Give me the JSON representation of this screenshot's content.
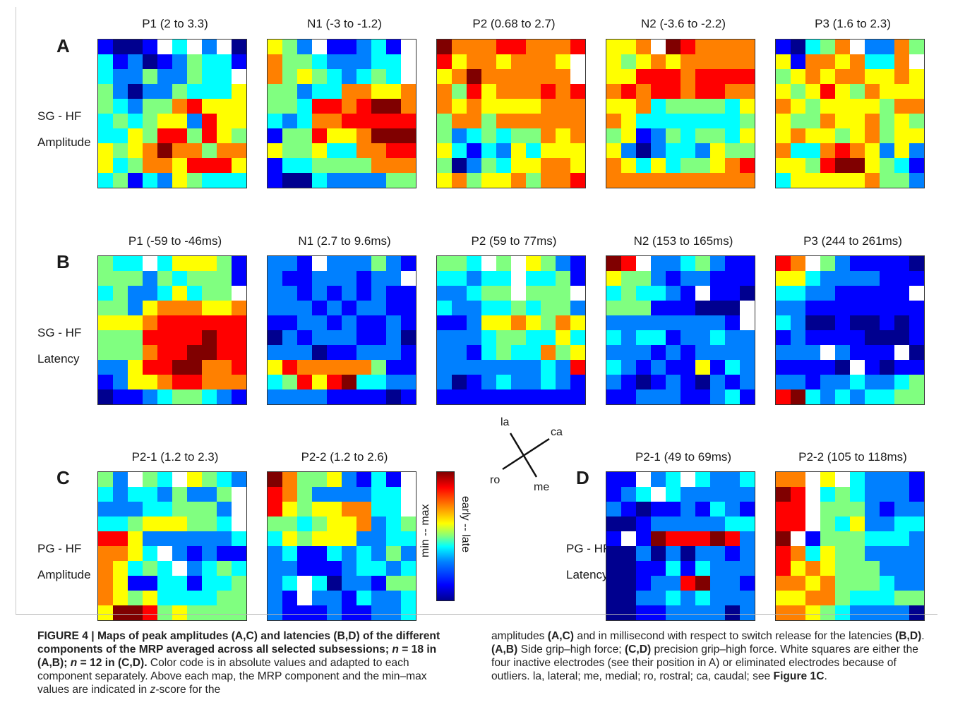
{
  "panels": {
    "A": {
      "letter": "A",
      "row_label_1": "SG - HF",
      "row_label_2": "Amplitude",
      "titles": [
        "P1 (2 to 3.3)",
        "N1 (-3 to -1.2)",
        "P2 (0.68 to 2.7)",
        "N2 (-3.6 to -2.2)",
        "P3 (1.6 to 2.3)"
      ]
    },
    "B": {
      "letter": "B",
      "row_label_1": "SG - HF",
      "row_label_2": "Latency",
      "titles": [
        "P1 (-59 to -46ms)",
        "N1 (2.7 to 9.6ms)",
        "P2 (59 to 77ms)",
        "N2 (153 to 165ms)",
        "P3 (244 to 261ms)"
      ]
    },
    "C": {
      "letter": "C",
      "row_label_1": "PG - HF",
      "row_label_2": "Amplitude",
      "titles": [
        "P2-1 (1.2 to 2.3)",
        "P2-2 (1.2 to 2.6)"
      ]
    },
    "D": {
      "letter": "D",
      "row_label_1": "PG - HF",
      "row_label_2": "Latency",
      "titles": [
        "P2-1 (49 to 69ms)",
        "P2-2 (105 to 118ms)"
      ]
    }
  },
  "colorbar": {
    "left_label": "min  --  max",
    "right_label": "early  --  late"
  },
  "compass": {
    "la": "la",
    "ca": "ca",
    "ro": "ro",
    "me": "me"
  },
  "colors": {
    "colormap": [
      "#00008f",
      "#0000ff",
      "#0080ff",
      "#00ffff",
      "#80ff80",
      "#ffff00",
      "#ff8000",
      "#ff0000",
      "#800000"
    ],
    "inactive": "#ffffff"
  },
  "maps": {
    "A1": [
      "2112040301",
      "4231235442",
      "4335335440",
      "5313354446",
      "5435578666",
      "4545663866",
      "4465885865",
      "6567977577",
      "6457768886",
      "4524365444"
    ],
    "N1": [
      "6530223420",
      "7554333440",
      "7565434540",
      "5534477667",
      "5548878997",
      "4347788888",
      "2558667999",
      "6556447788",
      "2445555777",
      "2114333355"
    ],
    "P2": [
      "9777887778",
      "8677677760",
      "6797777770",
      "7586777878",
      "7676666777",
      "5775777777",
      "5345455767",
      "6424364666",
      "5135466776",
      "6756675778"
    ],
    "N2": [
      "6670987777",
      "6567677777",
      "6688878888",
      "7878878877",
      "6674555546",
      "7644444445",
      "5623545546",
      "6313443655",
      "7646455678",
      "7777777777"
    ],
    "P3": [
      "2145703375",
      "6277674470",
      "5676776676",
      "6568657666",
      "7656666577",
      "6557667565",
      "6766567566",
      "7447876363",
      "6658996542",
      "4666667553"
    ],
    "BP1": [
      "5440466652",
      "5553545552",
      "4533464550",
      "5536777667",
      "6667888888",
      "5558888988",
      "5557889988",
      "3368899778",
      "2366788777",
      "1223455432"
    ],
    "BN1": [
      "3320333532",
      "3223332330",
      "3323232322",
      "3332323322",
      "2233232232",
      "1323332231",
      "3331223332",
      "6877777522",
      "4586894433",
      "3333222212"
    ],
    "BP2": [
      "5540506532",
      "4434404452",
      "3345505550",
      "4334454553",
      "2236676576",
      "3334554464",
      "3324544756",
      "3333333438",
      "3123433432",
      "2222222222"
    ],
    "BN2": [
      "9803345322",
      "6553233222",
      "4544320221",
      "5552221110",
      "3333333320",
      "4344233433",
      "3332323333",
      "4323226243",
      "3212321323",
      "2233322342"
    ],
    "BP3": [
      "8705322221",
      "6643333222",
      "4433222220",
      "3322222222",
      "4311211212",
      "2322221112",
      "3330322201",
      "2222102122",
      "3323343345",
      "8943434455"
    ],
    "C1": [
      "5305406543",
      "4344353350",
      "3334455530",
      "4456665540",
      "8863333334",
      "7764032322",
      "7645403454",
      "7622442445",
      "7656444455",
      "6998565555"
    ],
    "C2": [
      "9755632420",
      "8753333440",
      "8656677440",
      "5545667345",
      "4656663344",
      "3422434353",
      "3322234434",
      "3404133255",
      "3203324334",
      "3222322334"
    ],
    "D1": [
      "2203404334",
      "2340433333",
      "3212232432",
      "1123333344",
      "2029888983",
      "1131313323",
      "1122424333",
      "1123389332",
      "1133434333",
      "1122333313"
    ],
    "D2": [
      "7706043332",
      "9804543332",
      "8805553233",
      "8805463344",
      "9025554443",
      "8746553333",
      "8676555333",
      "7767555433",
      "6677544455",
      "7765433331"
    ]
  },
  "caption": {
    "fig_label": "FIGURE 4 | Maps of peak amplitudes (A,C) and latencies (B,D) of the different components of the MRP averaged across all selected subsessions; ",
    "n1": "n",
    "n1_text": " = 18 in (A,B); ",
    "n2": "n",
    "n2_text": " = 12 in (C,D).",
    "p1": " Color code is in absolute values and adapted to each component separately. Above each map, the MRP component and the min–max values are indicated in ",
    "zscore": "z",
    "p2": "-score for the",
    "right_1": "amplitudes ",
    "right_AC": "(A,C)",
    "right_2": " and in millisecond with respect to switch release for the latencies ",
    "right_BD": "(B,D)",
    "right_3": ". ",
    "right_AB": "(A,B)",
    "right_4": " Side grip–high force; ",
    "right_CD": "(C,D)",
    "right_5": " precision grip–high force. White squares are either the four inactive electrodes (see their position in A) or eliminated electrodes because of outliers. la, lateral; me, medial; ro, rostral; ca, caudal; see ",
    "right_fig": "Figure 1C",
    "right_6": "."
  }
}
